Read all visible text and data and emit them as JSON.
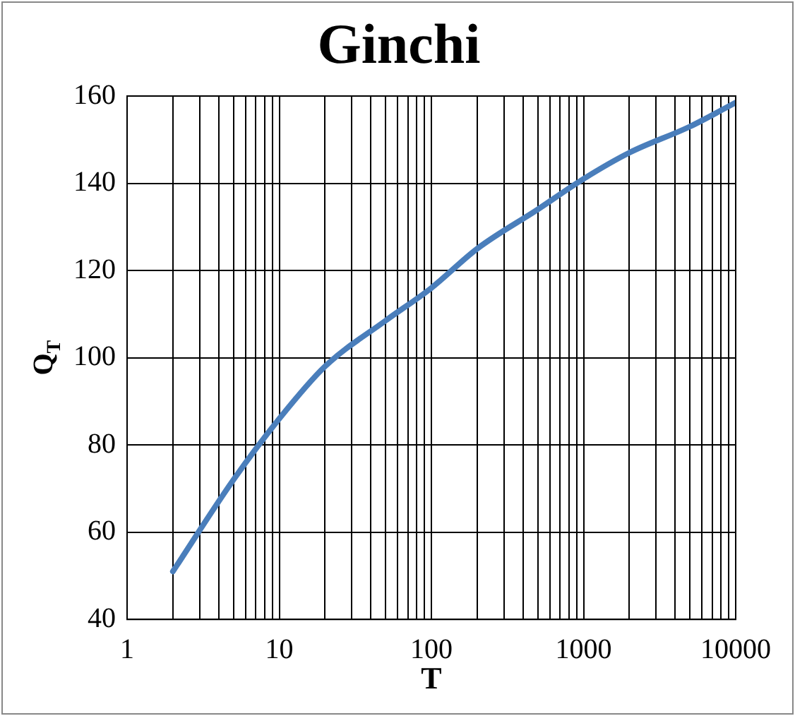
{
  "chart_data": {
    "type": "line",
    "title": "Ginchi",
    "xlabel": "T",
    "ylabel": "Q$_{T}$",
    "x": [
      2,
      5,
      10,
      20,
      50,
      100,
      200,
      500,
      1000,
      2000,
      5000,
      10000
    ],
    "series": [
      {
        "color": "#4a7ebb",
        "values": [
          51,
          72,
          86,
          98,
          108.5,
          116,
          125,
          134,
          141,
          147,
          153,
          158.5
        ]
      }
    ],
    "log": "x",
    "xlim": [
      1,
      10000
    ],
    "ylim": [
      40,
      160
    ],
    "xticks": [
      1,
      {
        "value": 2,
        "label": null
      },
      {
        "value": 3,
        "label": null
      },
      {
        "value": 4,
        "label": null
      },
      {
        "value": 5,
        "label": null
      },
      {
        "value": 6,
        "label": null
      },
      {
        "value": 7,
        "label": null
      },
      {
        "value": 8,
        "label": null
      },
      {
        "value": 9,
        "label": null
      },
      10,
      {
        "value": 20,
        "label": null
      },
      {
        "value": 30,
        "label": null
      },
      {
        "value": 40,
        "label": null
      },
      {
        "value": 50,
        "label": null
      },
      {
        "value": 60,
        "label": null
      },
      {
        "value": 70,
        "label": null
      },
      {
        "value": 80,
        "label": null
      },
      {
        "value": 90,
        "label": null
      },
      100,
      {
        "value": 200,
        "label": null
      },
      {
        "value": 300,
        "label": null
      },
      {
        "value": 400,
        "label": null
      },
      {
        "value": 500,
        "label": null
      },
      {
        "value": 600,
        "label": null
      },
      {
        "value": 700,
        "label": null
      },
      {
        "value": 800,
        "label": null
      },
      {
        "value": 900,
        "label": null
      },
      1000,
      {
        "value": 2000,
        "label": null
      },
      {
        "value": 3000,
        "label": null
      },
      {
        "value": 4000,
        "label": null
      },
      {
        "value": 5000,
        "label": null
      },
      {
        "value": 6000,
        "label": null
      },
      {
        "value": 7000,
        "label": null
      },
      {
        "value": 8000,
        "label": null
      },
      {
        "value": 9000,
        "label": null
      },
      10000
    ],
    "yticks": [
      40,
      60,
      80,
      100,
      120,
      140,
      160
    ],
    "grid": true,
    "legend": false,
    "marker": "none",
    "line_style": "solid"
  }
}
